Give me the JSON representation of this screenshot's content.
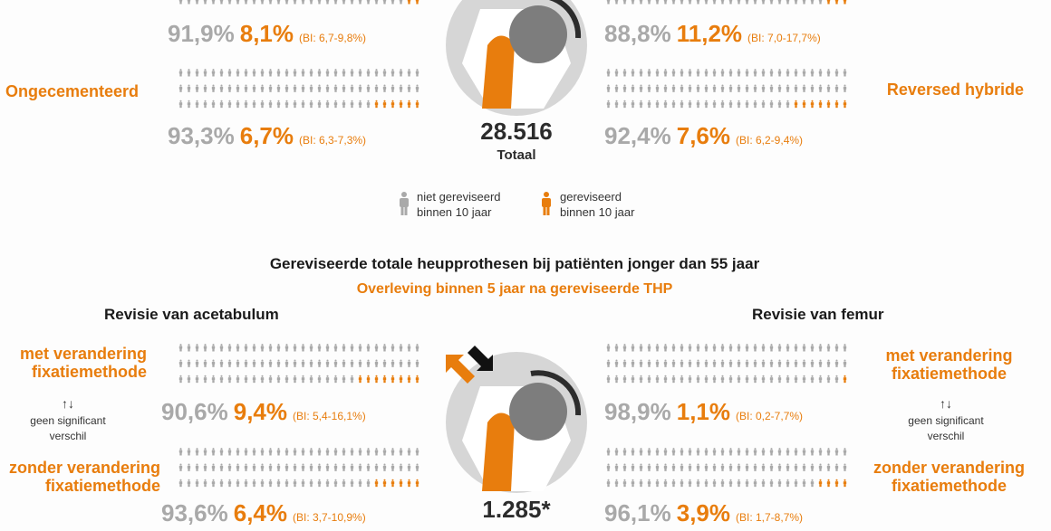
{
  "top": {
    "left_row1": {
      "pct_grey": "91,9%",
      "pct_orange": "8,1%",
      "ci": "(BI: 6,7-9,8%)",
      "orange_fraction": 0.081
    },
    "left_row2": {
      "label": "Ongecementeerd",
      "pct_grey": "93,3%",
      "pct_orange": "6,7%",
      "ci": "(BI: 6,3-7,3%)",
      "orange_fraction": 0.067
    },
    "right_row1": {
      "pct_grey": "88,8%",
      "pct_orange": "11,2%",
      "ci": "(BI: 7,0-17,7%)",
      "orange_fraction": 0.112
    },
    "right_row2": {
      "label": "Reversed hybride",
      "pct_grey": "92,4%",
      "pct_orange": "7,6%",
      "ci": "(BI: 6,2-9,4%)",
      "orange_fraction": 0.076
    },
    "total_number": "28.516",
    "total_label": "Totaal"
  },
  "legend": {
    "not_revised": "niet gereviseerd\nbinnen 10 jaar",
    "revised": "gereviseerd\nbinnen 10 jaar",
    "not_revised_line1": "niet gereviseerd",
    "not_revised_line2": "binnen 10 jaar",
    "revised_line1": "gereviseerd",
    "revised_line2": "binnen 10 jaar"
  },
  "bottom": {
    "title": "Gereviseerde totale heupprothesen bij patiënten jonger dan 55 jaar",
    "subtitle": "Overleving binnen 5 jaar na gereviseerde THP",
    "left_title": "Revisie van acetabulum",
    "right_title": "Revisie van femur",
    "left": {
      "row1": {
        "label_line1": "met verandering",
        "label_line2": "fixatiemethode",
        "pct_grey": "90,6%",
        "pct_orange": "9,4%",
        "ci": "(BI: 5,4-16,1%)",
        "orange_fraction": 0.094
      },
      "row2": {
        "label_line1": "zonder verandering",
        "label_line2": "fixatiemethode",
        "pct_grey": "93,6%",
        "pct_orange": "6,4%",
        "ci": "(BI: 3,7-10,9%)",
        "orange_fraction": 0.064
      },
      "note_arrows": "↑↓",
      "note_line1": "geen significant",
      "note_line2": "verschil"
    },
    "right": {
      "row1": {
        "label_line1": "met verandering",
        "label_line2": "fixatiemethode",
        "pct_grey": "98,9%",
        "pct_orange": "1,1%",
        "ci": "(BI: 0,2-7,7%)",
        "orange_fraction": 0.011
      },
      "row2": {
        "label_line1": "zonder verandering",
        "label_line2": "fixatiemethode",
        "pct_grey": "96,1%",
        "pct_orange": "3,9%",
        "ci": "(BI: 1,7-8,7%)",
        "orange_fraction": 0.039
      },
      "note_arrows": "↑↓",
      "note_line1": "geen significant",
      "note_line2": "verschil"
    },
    "total_number": "1.285*"
  },
  "colors": {
    "orange": "#e87d0d",
    "grey_person": "#a9a9a9",
    "dark": "#2c2c2c"
  }
}
